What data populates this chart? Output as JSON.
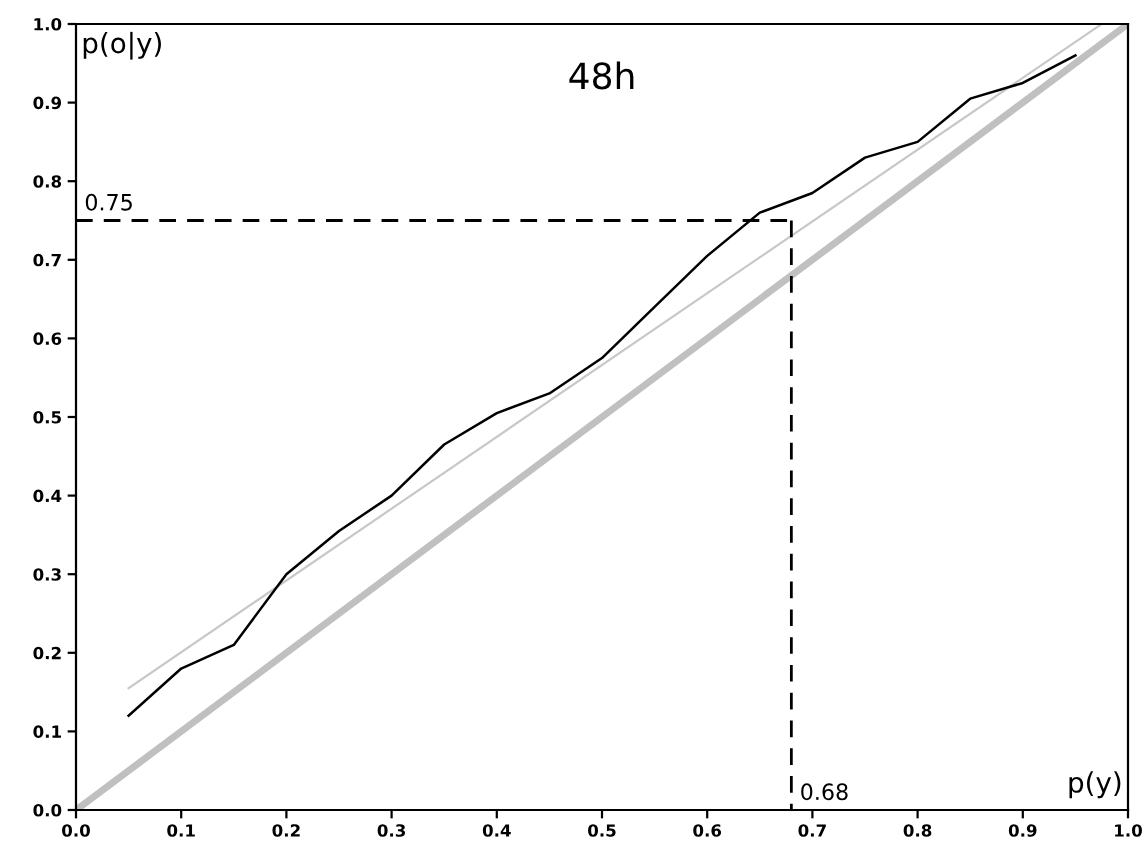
{
  "chart_data": {
    "type": "line",
    "title": "48h",
    "xlabel": "p(y)",
    "ylabel": "p(o|y)",
    "xlim": [
      0,
      1
    ],
    "ylim": [
      0,
      1
    ],
    "xticks": [
      {
        "value": 0,
        "label": "0.0"
      },
      {
        "value": 0.1,
        "label": "0.1"
      },
      {
        "value": 0.2,
        "label": "0.2"
      },
      {
        "value": 0.3,
        "label": "0.3"
      },
      {
        "value": 0.4,
        "label": "0.4"
      },
      {
        "value": 0.5,
        "label": "0.5"
      },
      {
        "value": 0.6,
        "label": "0.6"
      },
      {
        "value": 0.7,
        "label": "0.7"
      },
      {
        "value": 0.8,
        "label": "0.8"
      },
      {
        "value": 0.9,
        "label": "0.9"
      },
      {
        "value": 1,
        "label": "1.0"
      }
    ],
    "yticks": [
      {
        "value": 0,
        "label": "0.0"
      },
      {
        "value": 0.1,
        "label": "0.1"
      },
      {
        "value": 0.2,
        "label": "0.2"
      },
      {
        "value": 0.3,
        "label": "0.3"
      },
      {
        "value": 0.4,
        "label": "0.4"
      },
      {
        "value": 0.5,
        "label": "0.5"
      },
      {
        "value": 0.6,
        "label": "0.6"
      },
      {
        "value": 0.7,
        "label": "0.7"
      },
      {
        "value": 0.8,
        "label": "0.8"
      },
      {
        "value": 0.9,
        "label": "0.9"
      },
      {
        "value": 1,
        "label": "1.0"
      }
    ],
    "grid": false,
    "legend": false,
    "series": [
      {
        "color": "#c0c0c0",
        "x": [
          0,
          1
        ],
        "values": [
          0,
          1
        ],
        "line_style": "solid"
      },
      {
        "color": "#c8c8c8",
        "x": [
          0.05,
          0.975
        ],
        "values": [
          0.155,
          1.0
        ],
        "line_style": "solid"
      },
      {
        "color": "#000000",
        "x": [
          0.05,
          0.1,
          0.15,
          0.2,
          0.25,
          0.3,
          0.35,
          0.4,
          0.45,
          0.5,
          0.55,
          0.6,
          0.65,
          0.7,
          0.75,
          0.8,
          0.85,
          0.9,
          0.95
        ],
        "values": [
          0.12,
          0.18,
          0.21,
          0.3,
          0.355,
          0.4,
          0.465,
          0.505,
          0.53,
          0.575,
          0.64,
          0.705,
          0.76,
          0.785,
          0.83,
          0.85,
          0.905,
          0.925,
          0.96
        ],
        "line_style": "solid"
      },
      {
        "color": "#000000",
        "x": [
          0,
          0.68
        ],
        "values": [
          0.75,
          0.75
        ],
        "line_style": "dashed"
      },
      {
        "color": "#000000",
        "x": [
          0.68,
          0.68
        ],
        "values": [
          0.75,
          0
        ],
        "line_style": "dashed"
      }
    ],
    "annotations": [
      {
        "text": "0.75",
        "x": 0,
        "y": 0.75
      },
      {
        "text": "0.68",
        "x": 0.68,
        "y": 0
      }
    ]
  }
}
